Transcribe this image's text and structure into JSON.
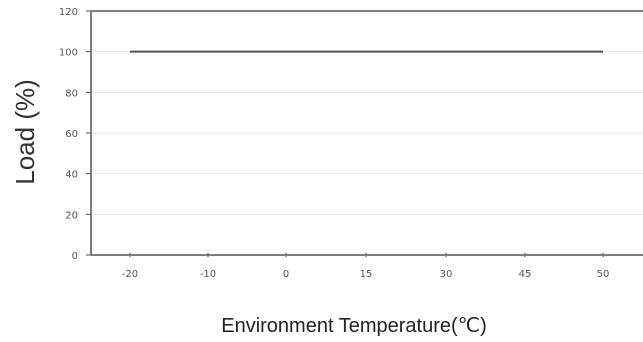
{
  "chart_data": {
    "type": "line",
    "xlabel": "Environment Temperature(℃)",
    "ylabel": "Load (%)",
    "categories": [
      "-20",
      "-10",
      "0",
      "15",
      "30",
      "45",
      "50"
    ],
    "series": [
      {
        "values": [
          100,
          100,
          100,
          100,
          100,
          100,
          100
        ]
      }
    ],
    "yticks": [
      0,
      20,
      40,
      60,
      80,
      100,
      120
    ],
    "ylim": [
      0,
      120
    ],
    "grid": true,
    "colors": {
      "line": "#555555",
      "grid": "#e6e6e6",
      "axis": "#555555"
    }
  }
}
